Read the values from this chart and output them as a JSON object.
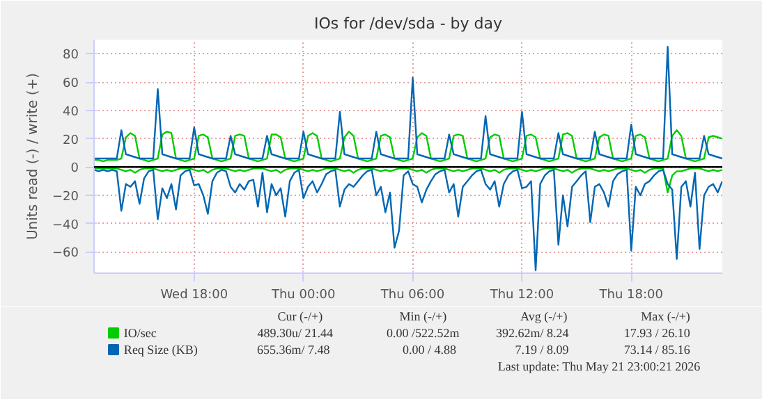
{
  "chart_data": {
    "type": "line",
    "title": "IOs for /dev/sda - by day",
    "ylabel": "Units read (-) / write (+)",
    "x": [
      "2026-05-20T12:30",
      "2026-05-20T12:45",
      "2026-05-20T13:00",
      "2026-05-20T13:15",
      "2026-05-20T13:30",
      "2026-05-20T13:45",
      "2026-05-20T14:00",
      "2026-05-20T14:15",
      "2026-05-20T14:30",
      "2026-05-20T14:45",
      "2026-05-20T15:00",
      "2026-05-20T15:15",
      "2026-05-20T15:30",
      "2026-05-20T15:45",
      "2026-05-20T16:00",
      "2026-05-20T16:15",
      "2026-05-20T16:30",
      "2026-05-20T16:45",
      "2026-05-20T17:00",
      "2026-05-20T17:15",
      "2026-05-20T17:30",
      "2026-05-20T17:45",
      "2026-05-20T18:00",
      "2026-05-20T18:15",
      "2026-05-20T18:30",
      "2026-05-20T18:45",
      "2026-05-20T19:00",
      "2026-05-20T19:15",
      "2026-05-20T19:30",
      "2026-05-20T19:45",
      "2026-05-20T20:00",
      "2026-05-20T20:15",
      "2026-05-20T20:30",
      "2026-05-20T20:45",
      "2026-05-20T21:00",
      "2026-05-20T21:15",
      "2026-05-20T21:30",
      "2026-05-20T21:45",
      "2026-05-20T22:00",
      "2026-05-20T22:15",
      "2026-05-20T22:30",
      "2026-05-20T22:45",
      "2026-05-20T23:00",
      "2026-05-20T23:15",
      "2026-05-20T23:30",
      "2026-05-20T23:45",
      "2026-05-21T00:00",
      "2026-05-21T00:15",
      "2026-05-21T00:30",
      "2026-05-21T00:45",
      "2026-05-21T01:00",
      "2026-05-21T01:15",
      "2026-05-21T01:30",
      "2026-05-21T01:45",
      "2026-05-21T02:00",
      "2026-05-21T02:15",
      "2026-05-21T02:30",
      "2026-05-21T02:45",
      "2026-05-21T03:00",
      "2026-05-21T03:15",
      "2026-05-21T03:30",
      "2026-05-21T03:45",
      "2026-05-21T04:00",
      "2026-05-21T04:15",
      "2026-05-21T04:30",
      "2026-05-21T04:45",
      "2026-05-21T05:00",
      "2026-05-21T05:15",
      "2026-05-21T05:30",
      "2026-05-21T05:45",
      "2026-05-21T06:00",
      "2026-05-21T06:15",
      "2026-05-21T06:30",
      "2026-05-21T06:45",
      "2026-05-21T07:00",
      "2026-05-21T07:15",
      "2026-05-21T07:30",
      "2026-05-21T07:45",
      "2026-05-21T08:00",
      "2026-05-21T08:15",
      "2026-05-21T08:30",
      "2026-05-21T08:45",
      "2026-05-21T09:00",
      "2026-05-21T09:15",
      "2026-05-21T09:30",
      "2026-05-21T09:45",
      "2026-05-21T10:00",
      "2026-05-21T10:15",
      "2026-05-21T10:30",
      "2026-05-21T10:45",
      "2026-05-21T11:00",
      "2026-05-21T11:15",
      "2026-05-21T11:30",
      "2026-05-21T11:45",
      "2026-05-21T12:00",
      "2026-05-21T12:15",
      "2026-05-21T12:30",
      "2026-05-21T12:45",
      "2026-05-21T13:00",
      "2026-05-21T13:15",
      "2026-05-21T13:30",
      "2026-05-21T13:45",
      "2026-05-21T14:00",
      "2026-05-21T14:15",
      "2026-05-21T14:30",
      "2026-05-21T14:45",
      "2026-05-21T15:00",
      "2026-05-21T15:15",
      "2026-05-21T15:30",
      "2026-05-21T15:45",
      "2026-05-21T16:00",
      "2026-05-21T16:15",
      "2026-05-21T16:30",
      "2026-05-21T16:45",
      "2026-05-21T17:00",
      "2026-05-21T17:15",
      "2026-05-21T17:30",
      "2026-05-21T17:45",
      "2026-05-21T18:00",
      "2026-05-21T18:15",
      "2026-05-21T18:30",
      "2026-05-21T18:45",
      "2026-05-21T19:00",
      "2026-05-21T19:15",
      "2026-05-21T19:30",
      "2026-05-21T19:45",
      "2026-05-21T20:00",
      "2026-05-21T20:15",
      "2026-05-21T20:30",
      "2026-05-21T20:45",
      "2026-05-21T21:00",
      "2026-05-21T21:15",
      "2026-05-21T21:30",
      "2026-05-21T21:45",
      "2026-05-21T22:00",
      "2026-05-21T22:15",
      "2026-05-21T22:30",
      "2026-05-21T22:45",
      "2026-05-21T23:00"
    ],
    "series": [
      {
        "name": "IO/sec",
        "color": "#00cc00",
        "values": [
          5,
          5,
          4,
          5,
          5,
          5,
          6,
          21,
          24,
          22,
          6,
          5,
          4,
          5,
          6,
          23,
          25,
          24,
          6,
          5,
          4,
          5,
          6,
          22,
          23,
          21,
          6,
          5,
          4,
          5,
          6,
          22,
          23,
          22,
          6,
          5,
          4,
          5,
          6,
          23,
          23,
          21,
          6,
          5,
          4,
          5,
          6,
          22,
          24,
          22,
          6,
          5,
          4,
          5,
          6,
          21,
          25,
          22,
          6,
          5,
          4,
          5,
          6,
          22,
          23,
          21,
          6,
          5,
          4,
          5,
          6,
          21,
          24,
          22,
          6,
          5,
          4,
          5,
          6,
          22,
          23,
          22,
          6,
          5,
          4,
          5,
          6,
          21,
          23,
          22,
          6,
          5,
          4,
          5,
          6,
          22,
          23,
          21,
          6,
          5,
          4,
          5,
          6,
          23,
          24,
          22,
          6,
          5,
          4,
          5,
          6,
          21,
          23,
          22,
          6,
          5,
          4,
          5,
          6,
          22,
          23,
          21,
          6,
          5,
          4,
          5,
          6,
          22,
          26,
          22,
          6,
          5,
          4,
          5,
          6,
          21,
          22,
          21,
          20
        ]
      },
      {
        "color": "#00cc00",
        "values": [
          -1,
          -1,
          -1,
          -1,
          -1,
          -1,
          -2,
          -3,
          -2,
          -4,
          -2,
          -1,
          -1,
          -1,
          -2,
          -3,
          -2,
          -3,
          -2,
          -1,
          -1,
          -1,
          -2,
          -3,
          -2,
          -4,
          -2,
          -1,
          -1,
          -1,
          -2,
          -3,
          -2,
          -3,
          -2,
          -1,
          -1,
          -1,
          -2,
          -3,
          -2,
          -4,
          -2,
          -1,
          -1,
          -1,
          -2,
          -3,
          -2,
          -3,
          -2,
          -1,
          -1,
          -1,
          -2,
          -3,
          -2,
          -4,
          -2,
          -1,
          -1,
          -1,
          -2,
          -3,
          -2,
          -3,
          -2,
          -1,
          -1,
          -1,
          -2,
          -3,
          -2,
          -4,
          -2,
          -1,
          -1,
          -1,
          -2,
          -3,
          -2,
          -3,
          -2,
          -1,
          -1,
          -1,
          -2,
          -3,
          -2,
          -4,
          -2,
          -1,
          -1,
          -1,
          -2,
          -3,
          -2,
          -3,
          -2,
          -1,
          -1,
          -1,
          -2,
          -3,
          -2,
          -4,
          -2,
          -1,
          -1,
          -1,
          -2,
          -3,
          -2,
          -3,
          -2,
          -1,
          -1,
          -1,
          -2,
          -3,
          -2,
          -4,
          -2,
          -1,
          -1,
          -1,
          -18,
          -6,
          -3,
          -3,
          -2,
          -1,
          -1,
          -1,
          -2,
          -3,
          -2,
          -3,
          -2
        ]
      },
      {
        "name": "Req Size (KB)",
        "color": "#0066b3",
        "values": [
          6,
          6,
          6,
          6,
          6,
          6,
          26,
          9,
          8,
          7,
          6,
          6,
          6,
          6,
          55,
          9,
          8,
          7,
          6,
          6,
          6,
          6,
          28,
          9,
          8,
          7,
          6,
          6,
          6,
          6,
          22,
          9,
          8,
          7,
          6,
          6,
          6,
          6,
          22,
          9,
          8,
          7,
          6,
          6,
          6,
          6,
          25,
          9,
          8,
          7,
          6,
          6,
          6,
          6,
          39,
          9,
          8,
          7,
          6,
          6,
          6,
          6,
          25,
          9,
          8,
          7,
          6,
          6,
          6,
          6,
          63,
          9,
          8,
          7,
          6,
          6,
          6,
          6,
          23,
          9,
          8,
          7,
          6,
          6,
          6,
          6,
          36,
          9,
          8,
          7,
          6,
          6,
          6,
          6,
          39,
          9,
          8,
          7,
          6,
          6,
          6,
          6,
          24,
          9,
          8,
          7,
          6,
          6,
          6,
          6,
          25,
          9,
          8,
          7,
          6,
          6,
          6,
          6,
          30,
          9,
          8,
          7,
          6,
          6,
          6,
          6,
          85,
          9,
          8,
          7,
          6,
          6,
          6,
          6,
          22,
          9,
          8,
          7,
          6
        ]
      },
      {
        "color": "#0066b3",
        "values": [
          -2,
          -3,
          -2,
          -3,
          -2,
          -3,
          -31,
          -12,
          -14,
          -10,
          -26,
          -8,
          -3,
          -2,
          -37,
          -15,
          -22,
          -12,
          -30,
          -6,
          -3,
          -2,
          -13,
          -12,
          -20,
          -33,
          -10,
          -4,
          -2,
          -3,
          -14,
          -18,
          -12,
          -16,
          -10,
          -9,
          -28,
          -4,
          -32,
          -12,
          -20,
          -15,
          -35,
          -10,
          -4,
          -2,
          -22,
          -14,
          -10,
          -18,
          -12,
          -5,
          -3,
          -2,
          -28,
          -16,
          -12,
          -14,
          -10,
          -6,
          -3,
          -2,
          -20,
          -14,
          -32,
          -18,
          -57,
          -45,
          -6,
          -3,
          -12,
          -14,
          -25,
          -16,
          -10,
          -5,
          -3,
          -2,
          -18,
          -12,
          -35,
          -14,
          -10,
          -6,
          -3,
          -2,
          -12,
          -16,
          -10,
          -28,
          -12,
          -6,
          -3,
          -2,
          -15,
          -14,
          -10,
          -73,
          -12,
          -6,
          -3,
          -2,
          -55,
          -20,
          -42,
          -14,
          -10,
          -6,
          -3,
          -39,
          -14,
          -12,
          -18,
          -28,
          -10,
          -5,
          -3,
          -2,
          -59,
          -14,
          -20,
          -12,
          -10,
          -6,
          -3,
          -2,
          -12,
          -16,
          -65,
          -14,
          -10,
          -28,
          -4,
          -58,
          -20,
          -14,
          -12,
          -18,
          -10
        ]
      }
    ],
    "xlim": [
      "2026-05-20T12:30",
      "2026-05-21T23:00"
    ],
    "xticks": [
      {
        "value": "2026-05-20T18:00",
        "label": "Wed 18:00"
      },
      {
        "value": "2026-05-21T00:00",
        "label": "Thu 00:00"
      },
      {
        "value": "2026-05-21T06:00",
        "label": "Thu 06:00"
      },
      {
        "value": "2026-05-21T12:00",
        "label": "Thu 12:00"
      },
      {
        "value": "2026-05-21T18:00",
        "label": "Thu 18:00"
      }
    ],
    "ylim": [
      -75,
      90
    ],
    "yticks": [
      -60,
      -40,
      -20,
      0,
      20,
      40,
      60,
      80
    ],
    "ref_lines": [
      {
        "axis": "y",
        "value": 0,
        "color": "#000000"
      }
    ],
    "grid": true,
    "legend": "bottom",
    "marker": "none",
    "line_style": "solid",
    "annotations": [
      "Cur (-/+)",
      "Min (-/+)",
      "Avg (-/+)",
      "Max (-/+)",
      "489.30u/ 21.44",
      "0.00 /522.52m",
      "392.62m/  8.24",
      "17.93 / 26.10",
      "655.36m/  7.48",
      "0.00 /  4.88",
      "7.19 /  8.09",
      "73.14 / 85.16",
      "Last update: Thu May 21 23:00:21 2026"
    ]
  }
}
